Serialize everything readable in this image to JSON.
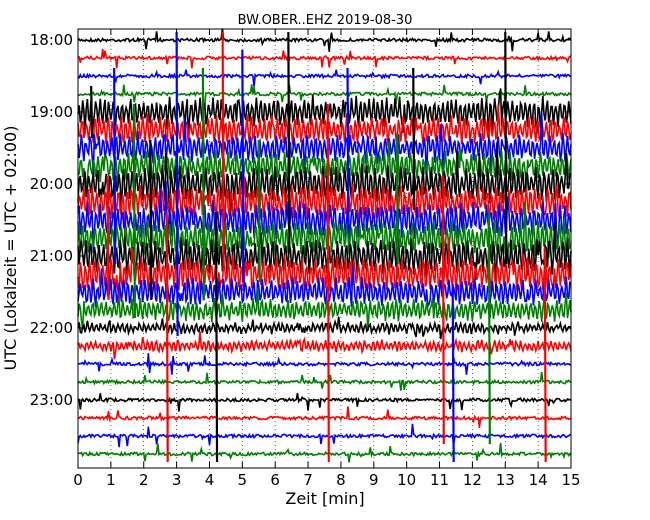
{
  "chart_data": {
    "type": "line",
    "title": "BW.OBER..EHZ 2019-08-30",
    "xlabel": "Zeit  [min]",
    "ylabel": "UTC (Lokalzeit = UTC + 02:00)",
    "xlim": [
      0,
      15
    ],
    "x_ticks": [
      "0",
      "1",
      "2",
      "3",
      "4",
      "5",
      "6",
      "7",
      "8",
      "9",
      "10",
      "11",
      "12",
      "13",
      "14",
      "15"
    ],
    "y_ticks": [
      "18:00",
      "19:00",
      "20:00",
      "21:00",
      "22:00",
      "23:00"
    ],
    "grid": "vertical dotted",
    "trace_interval_minutes": 15,
    "color_cycle": [
      "#000000",
      "#ff0000",
      "#0000ff",
      "#008000"
    ],
    "traces_start": "18:00",
    "traces_count": 24,
    "amplitude_profile": [
      1,
      1,
      1,
      1,
      4,
      4,
      4,
      4,
      5,
      5,
      5,
      5,
      5,
      5,
      4,
      3,
      1.5,
      1.5,
      1.2,
      1.2,
      1,
      1,
      1,
      1
    ]
  }
}
